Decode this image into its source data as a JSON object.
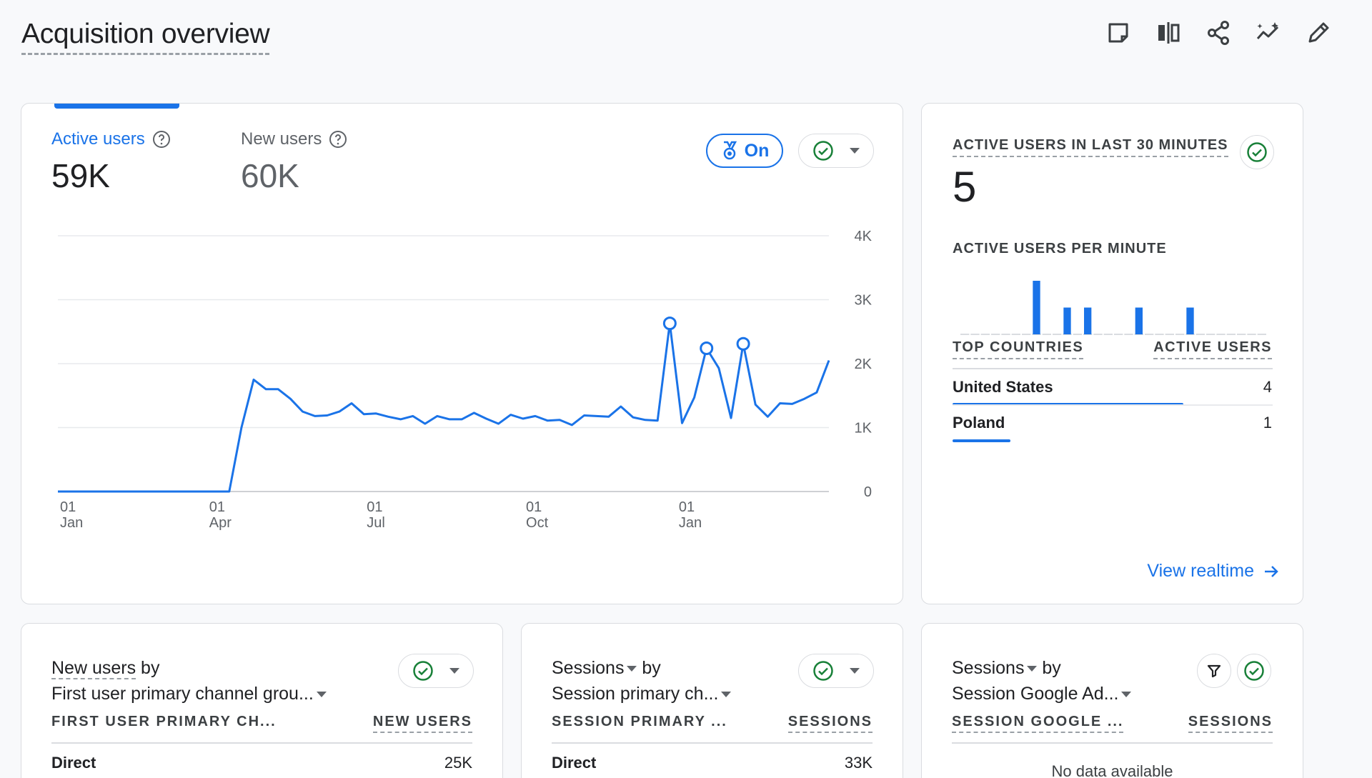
{
  "page": {
    "title": "Acquisition overview"
  },
  "toolbar": {
    "icons": [
      "note-icon",
      "compare-icon",
      "share-icon",
      "insights-icon",
      "edit-icon"
    ]
  },
  "main_card": {
    "active_label": "Active users",
    "active_value": "59K",
    "new_label": "New users",
    "new_value": "60K",
    "on_label": "On"
  },
  "chart_data": {
    "type": "line",
    "x_ticks": [
      [
        "01",
        "Jan"
      ],
      [
        "01",
        "Apr"
      ],
      [
        "01",
        "Jul"
      ],
      [
        "01",
        "Oct"
      ],
      [
        "01",
        "Jan"
      ]
    ],
    "y_ticks": [
      "4K",
      "3K",
      "2K",
      "1K",
      "0"
    ],
    "ylim": [
      0,
      4000
    ],
    "grid": true,
    "y_axis_side": "right",
    "color": "#1a73e8",
    "series": [
      {
        "values": [
          0,
          0,
          0,
          0,
          0,
          0,
          0,
          0,
          0,
          0,
          0,
          0,
          0,
          0,
          0,
          1000,
          1750,
          1600,
          1600,
          1450,
          1250,
          1180,
          1190,
          1250,
          1380,
          1210,
          1220,
          1170,
          1130,
          1180,
          1060,
          1180,
          1130,
          1130,
          1230,
          1140,
          1060,
          1200,
          1140,
          1180,
          1110,
          1120,
          1040,
          1190,
          1180,
          1170,
          1330,
          1160,
          1120,
          1110,
          2630,
          1070,
          1470,
          2240,
          1930,
          1150,
          2310,
          1360,
          1170,
          1380,
          1370,
          1450,
          1550,
          2050
        ],
        "marker_indices": [
          50,
          53,
          56
        ]
      }
    ]
  },
  "realtime": {
    "title": "ACTIVE USERS IN LAST 30 MINUTES",
    "count": "5",
    "per_minute_label": "ACTIVE USERS PER MINUTE",
    "per_minute": [
      0,
      0,
      0,
      0,
      0,
      0,
      0,
      1,
      0,
      0,
      0.5,
      0,
      0.5,
      0,
      0,
      0,
      0,
      0.5,
      0,
      0,
      0,
      0,
      0.5,
      0,
      0,
      0,
      0,
      0,
      0,
      0
    ],
    "col_country": "TOP COUNTRIES",
    "col_users": "ACTIVE USERS",
    "rows": [
      {
        "country": "United States",
        "users": "4",
        "share": 0.8
      },
      {
        "country": "Poland",
        "users": "1",
        "share": 0.2
      }
    ],
    "link": "View realtime"
  },
  "card_new_users": {
    "title_a": "New users",
    "title_b": " by",
    "subtitle": "First user primary channel grou...",
    "col1": "FIRST USER PRIMARY CH...",
    "col2": "NEW USERS",
    "row_label": "Direct",
    "row_value": "25K"
  },
  "card_sessions": {
    "title_a": "Sessions",
    "title_b": " by",
    "subtitle": "Session primary ch...",
    "col1": "SESSION PRIMARY ...",
    "col2": "SESSIONS",
    "row_label": "Direct",
    "row_value": "33K"
  },
  "card_ads": {
    "title_a": "Sessions",
    "title_b": " by",
    "subtitle": "Session Google Ad...",
    "col1": "SESSION GOOGLE ...",
    "col2": "SESSIONS",
    "nodata": "No data available"
  }
}
